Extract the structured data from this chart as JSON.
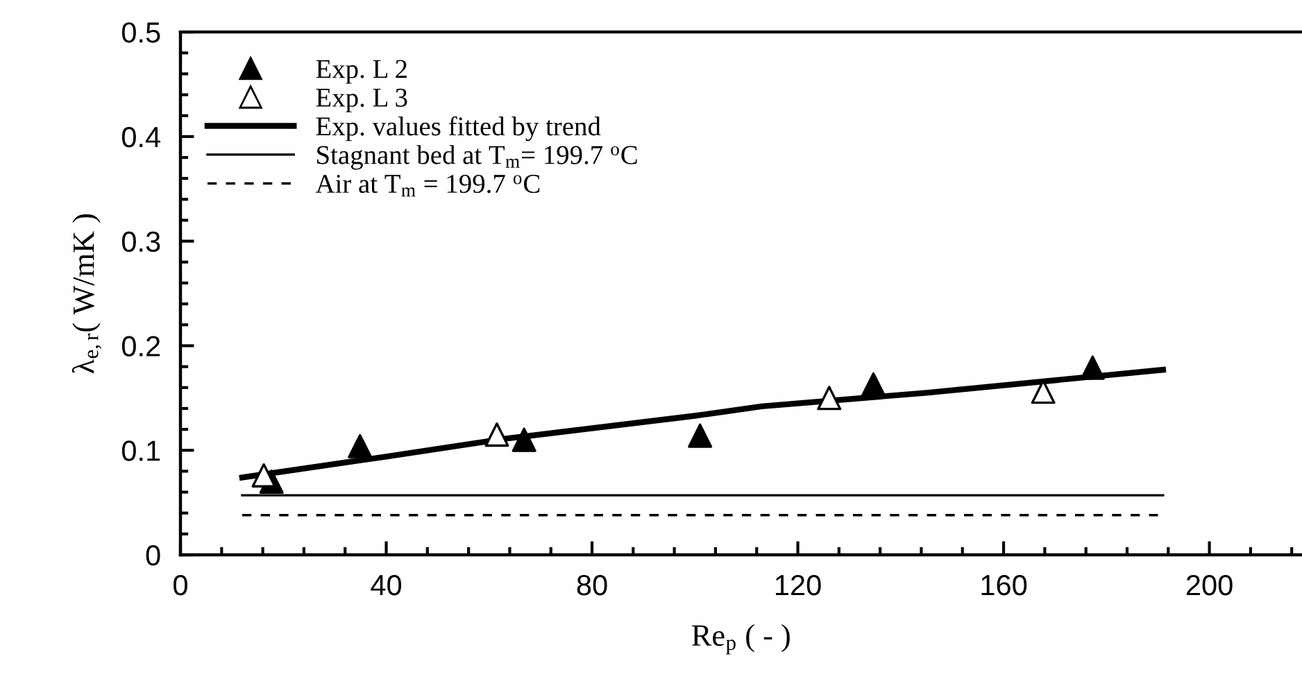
{
  "chart_data": {
    "type": "scatter",
    "xlabel": "Re$_{p}$ ( - )",
    "ylabel": "λ$_{e,r}$( W/mK )",
    "xlim": [
      0,
      218
    ],
    "ylim": [
      0,
      0.5
    ],
    "xticks": [
      0,
      40,
      80,
      120,
      160,
      200
    ],
    "yticks": [
      0,
      0.1,
      0.2,
      0.3,
      0.4,
      0.5
    ],
    "legend": "top left",
    "grid": false,
    "series": [
      {
        "name": "Exp. L 2",
        "marker": "triangle",
        "color": "#000000",
        "x": [
          17.7,
          34.9,
          66.8,
          101,
          134.7,
          177.3
        ],
        "values": [
          0.07,
          0.104,
          0.11,
          0.114,
          0.163,
          0.179
        ]
      },
      {
        "name": "Exp. L 3",
        "marker": "triangle",
        "color": "#ffffff",
        "x": [
          16.2,
          61.5,
          126.1,
          167.7
        ],
        "values": [
          0.076,
          0.115,
          0.15,
          0.156
        ]
      },
      {
        "name": "Exp. values fitted by trend",
        "type": "line",
        "line_style": "solid",
        "color": "#000000",
        "x": [
          12,
          40,
          63,
          100,
          113,
          145,
          191
        ],
        "values": [
          0.074,
          0.094,
          0.111,
          0.133,
          0.142,
          0.155,
          0.177
        ]
      },
      {
        "name": "Stagnant bed at T$_{m}$= 199.7 $^{o}$C",
        "type": "line",
        "line_style": "solid",
        "color": "#000000",
        "x": [
          12,
          191
        ],
        "values": [
          0.057,
          0.057
        ]
      },
      {
        "name": "Air at T$_{m}$ = 199.7 $^{o}$C",
        "type": "line",
        "line_style": "dashed",
        "color": "#000000",
        "x": [
          12,
          190
        ],
        "values": [
          0.038,
          0.038
        ]
      }
    ]
  }
}
